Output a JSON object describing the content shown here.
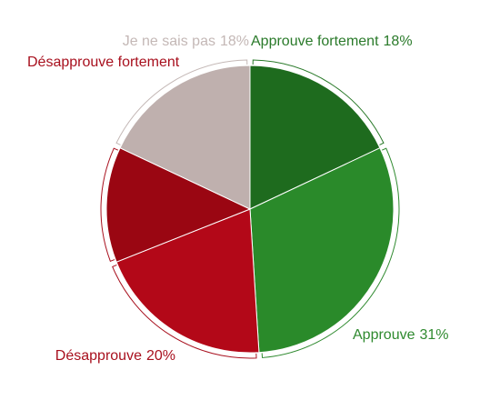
{
  "chart_data": {
    "type": "pie",
    "categories": [
      "Approuve fortement",
      "Approuve",
      "Désapprouve",
      "Désapprouve fortement",
      "Je ne sais pas"
    ],
    "values": [
      18,
      31,
      20,
      13,
      18
    ],
    "value_labels": [
      "18%",
      "31%",
      "20%",
      null,
      "18%"
    ],
    "colors": [
      "#1e6b1e",
      "#2a8a2a",
      "#b30818",
      "#9a0612",
      "#bfb0ae"
    ],
    "label_colors": [
      "#2a7a2a",
      "#2f8a2f",
      "#a8101e",
      "#a8101e",
      "#c4b8b6"
    ]
  }
}
